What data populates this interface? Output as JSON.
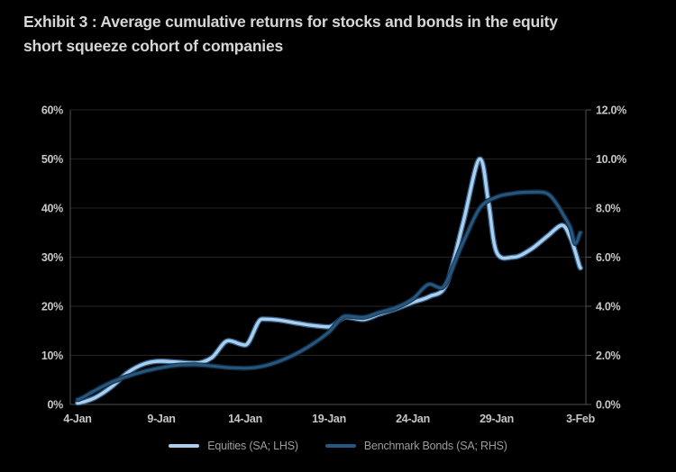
{
  "title": {
    "line1": "Exhibit 3 : Average cumulative returns for stocks and bonds in the equity",
    "line2": "short squeeze cohort of companies"
  },
  "colors": {
    "background": "#000000",
    "title_text": "#d6d6d6",
    "axis_text": "#c6c6c6",
    "legend_text": "#9b9ba1",
    "gridline": "#232323",
    "axis_line": "#4c4f52",
    "equities_line": "#abcfec",
    "equities_line_edge": "#3a6d9c",
    "bonds_line": "#265781",
    "bonds_line_edge": "#132c42"
  },
  "legend": {
    "items": [
      {
        "label": "Equities (SA; LHS)"
      },
      {
        "label": "Benchmark Bonds (SA; RHS)"
      }
    ]
  },
  "chart_data": {
    "type": "line",
    "title": "Average cumulative returns for stocks and bonds in the equity short squeeze cohort of companies",
    "grid": "horizontal",
    "legend_position": "bottom-center",
    "x_axis": {
      "unit": "date",
      "tick_labels": [
        "4-Jan",
        "9-Jan",
        "14-Jan",
        "19-Jan",
        "24-Jan",
        "29-Jan",
        "3-Feb"
      ],
      "tick_days": [
        0,
        5,
        10,
        15,
        20,
        25,
        30
      ],
      "range_days": [
        0,
        30
      ]
    },
    "left_axis": {
      "tick_labels": [
        "0%",
        "10%",
        "20%",
        "30%",
        "40%",
        "50%",
        "60%"
      ],
      "tick_values": [
        0,
        10,
        20,
        30,
        40,
        50,
        60
      ],
      "range": [
        0,
        60
      ],
      "series": "Equities (SA; LHS)"
    },
    "right_axis": {
      "tick_labels": [
        "0.0%",
        "2.0%",
        "4.0%",
        "6.0%",
        "8.0%",
        "10.0%",
        "12.0%"
      ],
      "tick_values": [
        0,
        2,
        4,
        6,
        8,
        10,
        12
      ],
      "range": [
        0,
        12
      ],
      "series": "Benchmark Bonds (SA; RHS)"
    },
    "series": [
      {
        "name": "Equities (SA; LHS)",
        "axis": "left",
        "color": "#abcfec",
        "edge_color": "#3a6d9c",
        "width": 3.4,
        "points_day_value": [
          [
            0,
            0.3
          ],
          [
            1,
            1.3
          ],
          [
            2,
            3.5
          ],
          [
            3,
            6.5
          ],
          [
            4,
            8.3
          ],
          [
            5,
            8.8
          ],
          [
            6,
            8.6
          ],
          [
            7,
            8.4
          ],
          [
            8,
            9.5
          ],
          [
            9,
            13.0
          ],
          [
            10,
            12.1
          ],
          [
            11,
            17.4
          ],
          [
            12,
            17.2
          ],
          [
            13,
            16.6
          ],
          [
            14,
            16.1
          ],
          [
            15,
            15.8
          ],
          [
            16,
            17.8
          ],
          [
            17,
            17.3
          ],
          [
            18,
            18.4
          ],
          [
            19,
            19.5
          ],
          [
            20,
            20.8
          ],
          [
            21,
            22.0
          ],
          [
            22,
            24.5
          ],
          [
            23,
            37.0
          ],
          [
            24,
            50.0
          ],
          [
            24.5,
            41.5
          ],
          [
            25,
            31.0
          ],
          [
            26,
            30.0
          ],
          [
            27,
            31.5
          ],
          [
            28,
            34.2
          ],
          [
            28.9,
            36.5
          ],
          [
            29.4,
            34.0
          ],
          [
            29.7,
            31.0
          ],
          [
            30,
            27.8
          ]
        ]
      },
      {
        "name": "Benchmark Bonds (SA; RHS)",
        "axis": "right",
        "color": "#265781",
        "edge_color": "#132c42",
        "width": 3.0,
        "points_day_value": [
          [
            0,
            0.2
          ],
          [
            1,
            0.55
          ],
          [
            2,
            0.9
          ],
          [
            3,
            1.15
          ],
          [
            4,
            1.35
          ],
          [
            5,
            1.5
          ],
          [
            6,
            1.6
          ],
          [
            7,
            1.62
          ],
          [
            8,
            1.57
          ],
          [
            9,
            1.5
          ],
          [
            10,
            1.48
          ],
          [
            11,
            1.55
          ],
          [
            12,
            1.75
          ],
          [
            13,
            2.05
          ],
          [
            14,
            2.45
          ],
          [
            15,
            2.95
          ],
          [
            16,
            3.6
          ],
          [
            17,
            3.55
          ],
          [
            18,
            3.75
          ],
          [
            19,
            3.95
          ],
          [
            20,
            4.3
          ],
          [
            21,
            4.9
          ],
          [
            21.7,
            4.75
          ],
          [
            23,
            6.6
          ],
          [
            24,
            8.0
          ],
          [
            25,
            8.45
          ],
          [
            26,
            8.6
          ],
          [
            27,
            8.65
          ],
          [
            28,
            8.6
          ],
          [
            28.6,
            8.15
          ],
          [
            29,
            7.7
          ],
          [
            29.4,
            7.2
          ],
          [
            29.7,
            6.55
          ],
          [
            30,
            7.0
          ]
        ]
      }
    ]
  }
}
